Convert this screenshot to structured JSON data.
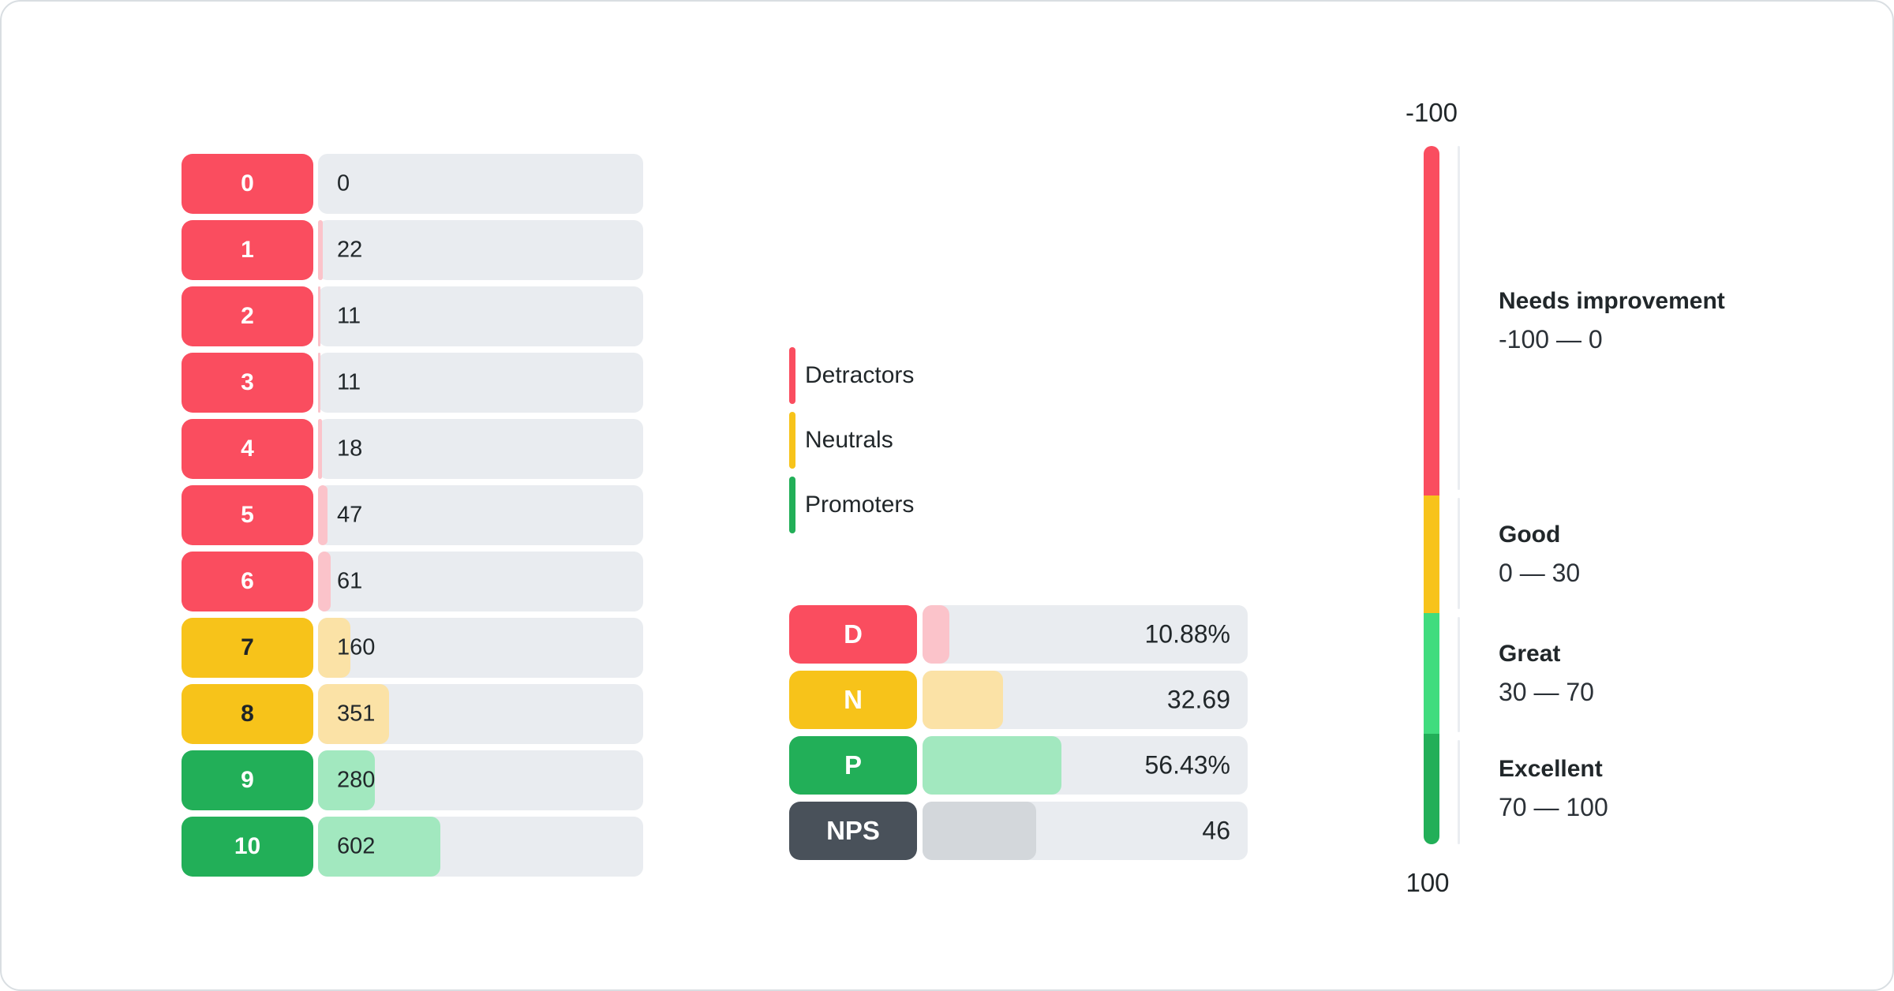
{
  "colors": {
    "red": "#FA4D5F",
    "red_tint": "#FBC3CA",
    "yellow": "#F7C31A",
    "yellow_tint": "#FBE2A6",
    "green": "#22AF58",
    "green_tint": "#A2E8BF",
    "gauge_light_green": "#40DC7E",
    "slate": "#49515A",
    "slate_tint": "#D3D7DB",
    "track": "#E9ECF0",
    "line": "#EAEDF1",
    "text": "#21272A",
    "text_on_yellow": "#1F2428",
    "card_border": "#D9DEE2",
    "card_bg": "#FFFFFF"
  },
  "legend": {
    "items": [
      {
        "label": "Detractors"
      },
      {
        "label": "Neutrals"
      },
      {
        "label": "Promoters"
      }
    ]
  },
  "chart_data": [
    {
      "id": "score_distribution",
      "type": "bar",
      "orientation": "horizontal",
      "categories": [
        "0",
        "1",
        "2",
        "3",
        "4",
        "5",
        "6",
        "7",
        "8",
        "9",
        "10"
      ],
      "values": [
        0,
        22,
        11,
        11,
        18,
        47,
        61,
        160,
        351,
        280,
        602
      ],
      "value_labels": [
        "0",
        "22",
        "11",
        "11",
        "18",
        "47",
        "61",
        "160",
        "351",
        "280",
        "602"
      ],
      "groups": [
        "detractor",
        "detractor",
        "detractor",
        "detractor",
        "detractor",
        "detractor",
        "detractor",
        "neutral",
        "neutral",
        "promoter",
        "promoter"
      ],
      "xlim": [
        0,
        1600
      ],
      "grid": false,
      "legend_position": "right"
    },
    {
      "id": "nps_summary",
      "type": "bar",
      "orientation": "horizontal",
      "categories": [
        "D",
        "N",
        "P",
        "NPS"
      ],
      "values": [
        10.88,
        32.69,
        56.43,
        46
      ],
      "value_labels": [
        "10.88%",
        "32.69",
        "56.43%",
        "46"
      ],
      "groups": [
        "detractor",
        "neutral",
        "promoter",
        "nps"
      ],
      "xlim": [
        0,
        132
      ],
      "grid": false
    },
    {
      "id": "nps_gauge",
      "type": "gauge",
      "axis": {
        "top": "-100",
        "bottom": "100",
        "min": -100,
        "max": 100
      },
      "segments": [
        {
          "label": "Needs improvement",
          "range_text": "-100 — 0",
          "from": -100,
          "to": 0,
          "height_pct": 50.1,
          "color": "#FA4D5F"
        },
        {
          "label": "Good",
          "range_text": "0 — 30",
          "from": 0,
          "to": 30,
          "height_pct": 16.8,
          "color": "#F7C31A"
        },
        {
          "label": "Great",
          "range_text": "30 — 70",
          "from": 30,
          "to": 70,
          "height_pct": 17.3,
          "color": "#40DC7E"
        },
        {
          "label": "Excellent",
          "range_text": "70 — 100",
          "from": 70,
          "to": 100,
          "height_pct": 15.8,
          "color": "#22AF58"
        }
      ]
    }
  ]
}
